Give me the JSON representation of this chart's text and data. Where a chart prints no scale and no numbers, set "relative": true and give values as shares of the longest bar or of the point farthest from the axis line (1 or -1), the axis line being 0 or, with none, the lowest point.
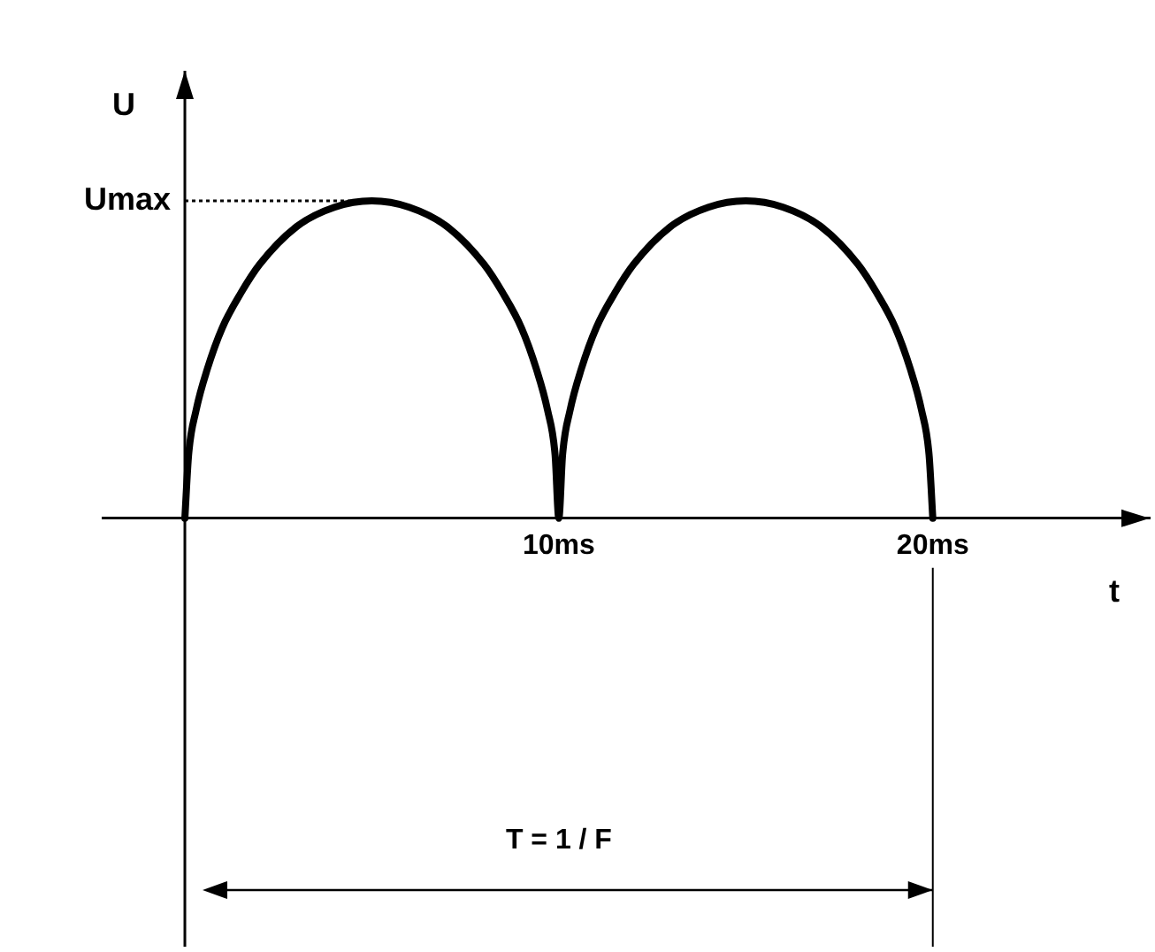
{
  "chart_data": {
    "type": "line",
    "xlabel": "t",
    "ylabel": "U",
    "relative": true,
    "x": [
      0,
      0.1,
      0.3,
      0.6,
      1,
      1.5,
      2,
      3,
      4,
      5,
      6,
      7,
      8,
      8.5,
      9,
      9.4,
      9.7,
      9.9,
      10,
      10.1,
      10.3,
      10.6,
      11,
      11.5,
      12,
      13,
      14,
      15,
      16,
      17,
      18,
      18.5,
      19,
      19.4,
      19.7,
      19.9,
      20
    ],
    "series": [
      {
        "color": "#000000",
        "values": [
          0,
          0.2,
          0.34,
          0.47,
          0.6,
          0.71,
          0.8,
          0.92,
          0.98,
          1,
          0.98,
          0.92,
          0.8,
          0.71,
          0.6,
          0.47,
          0.34,
          0.2,
          0,
          0.2,
          0.34,
          0.47,
          0.6,
          0.71,
          0.8,
          0.92,
          0.98,
          1,
          0.98,
          0.92,
          0.8,
          0.71,
          0.6,
          0.47,
          0.34,
          0.2,
          0
        ]
      }
    ],
    "xlim": [
      -2.2,
      25.8
    ],
    "xticks": [
      {
        "value": 10,
        "label": "10ms"
      },
      {
        "value": 20,
        "label": "20ms"
      }
    ],
    "grid": false,
    "legend": false,
    "marker": "none",
    "line_style": "solid",
    "ref_lines": [
      {
        "axis": "y",
        "value": 1,
        "label": "Umax",
        "line_style": "dotted"
      }
    ],
    "annotations": [
      "T = 1 / F"
    ]
  }
}
